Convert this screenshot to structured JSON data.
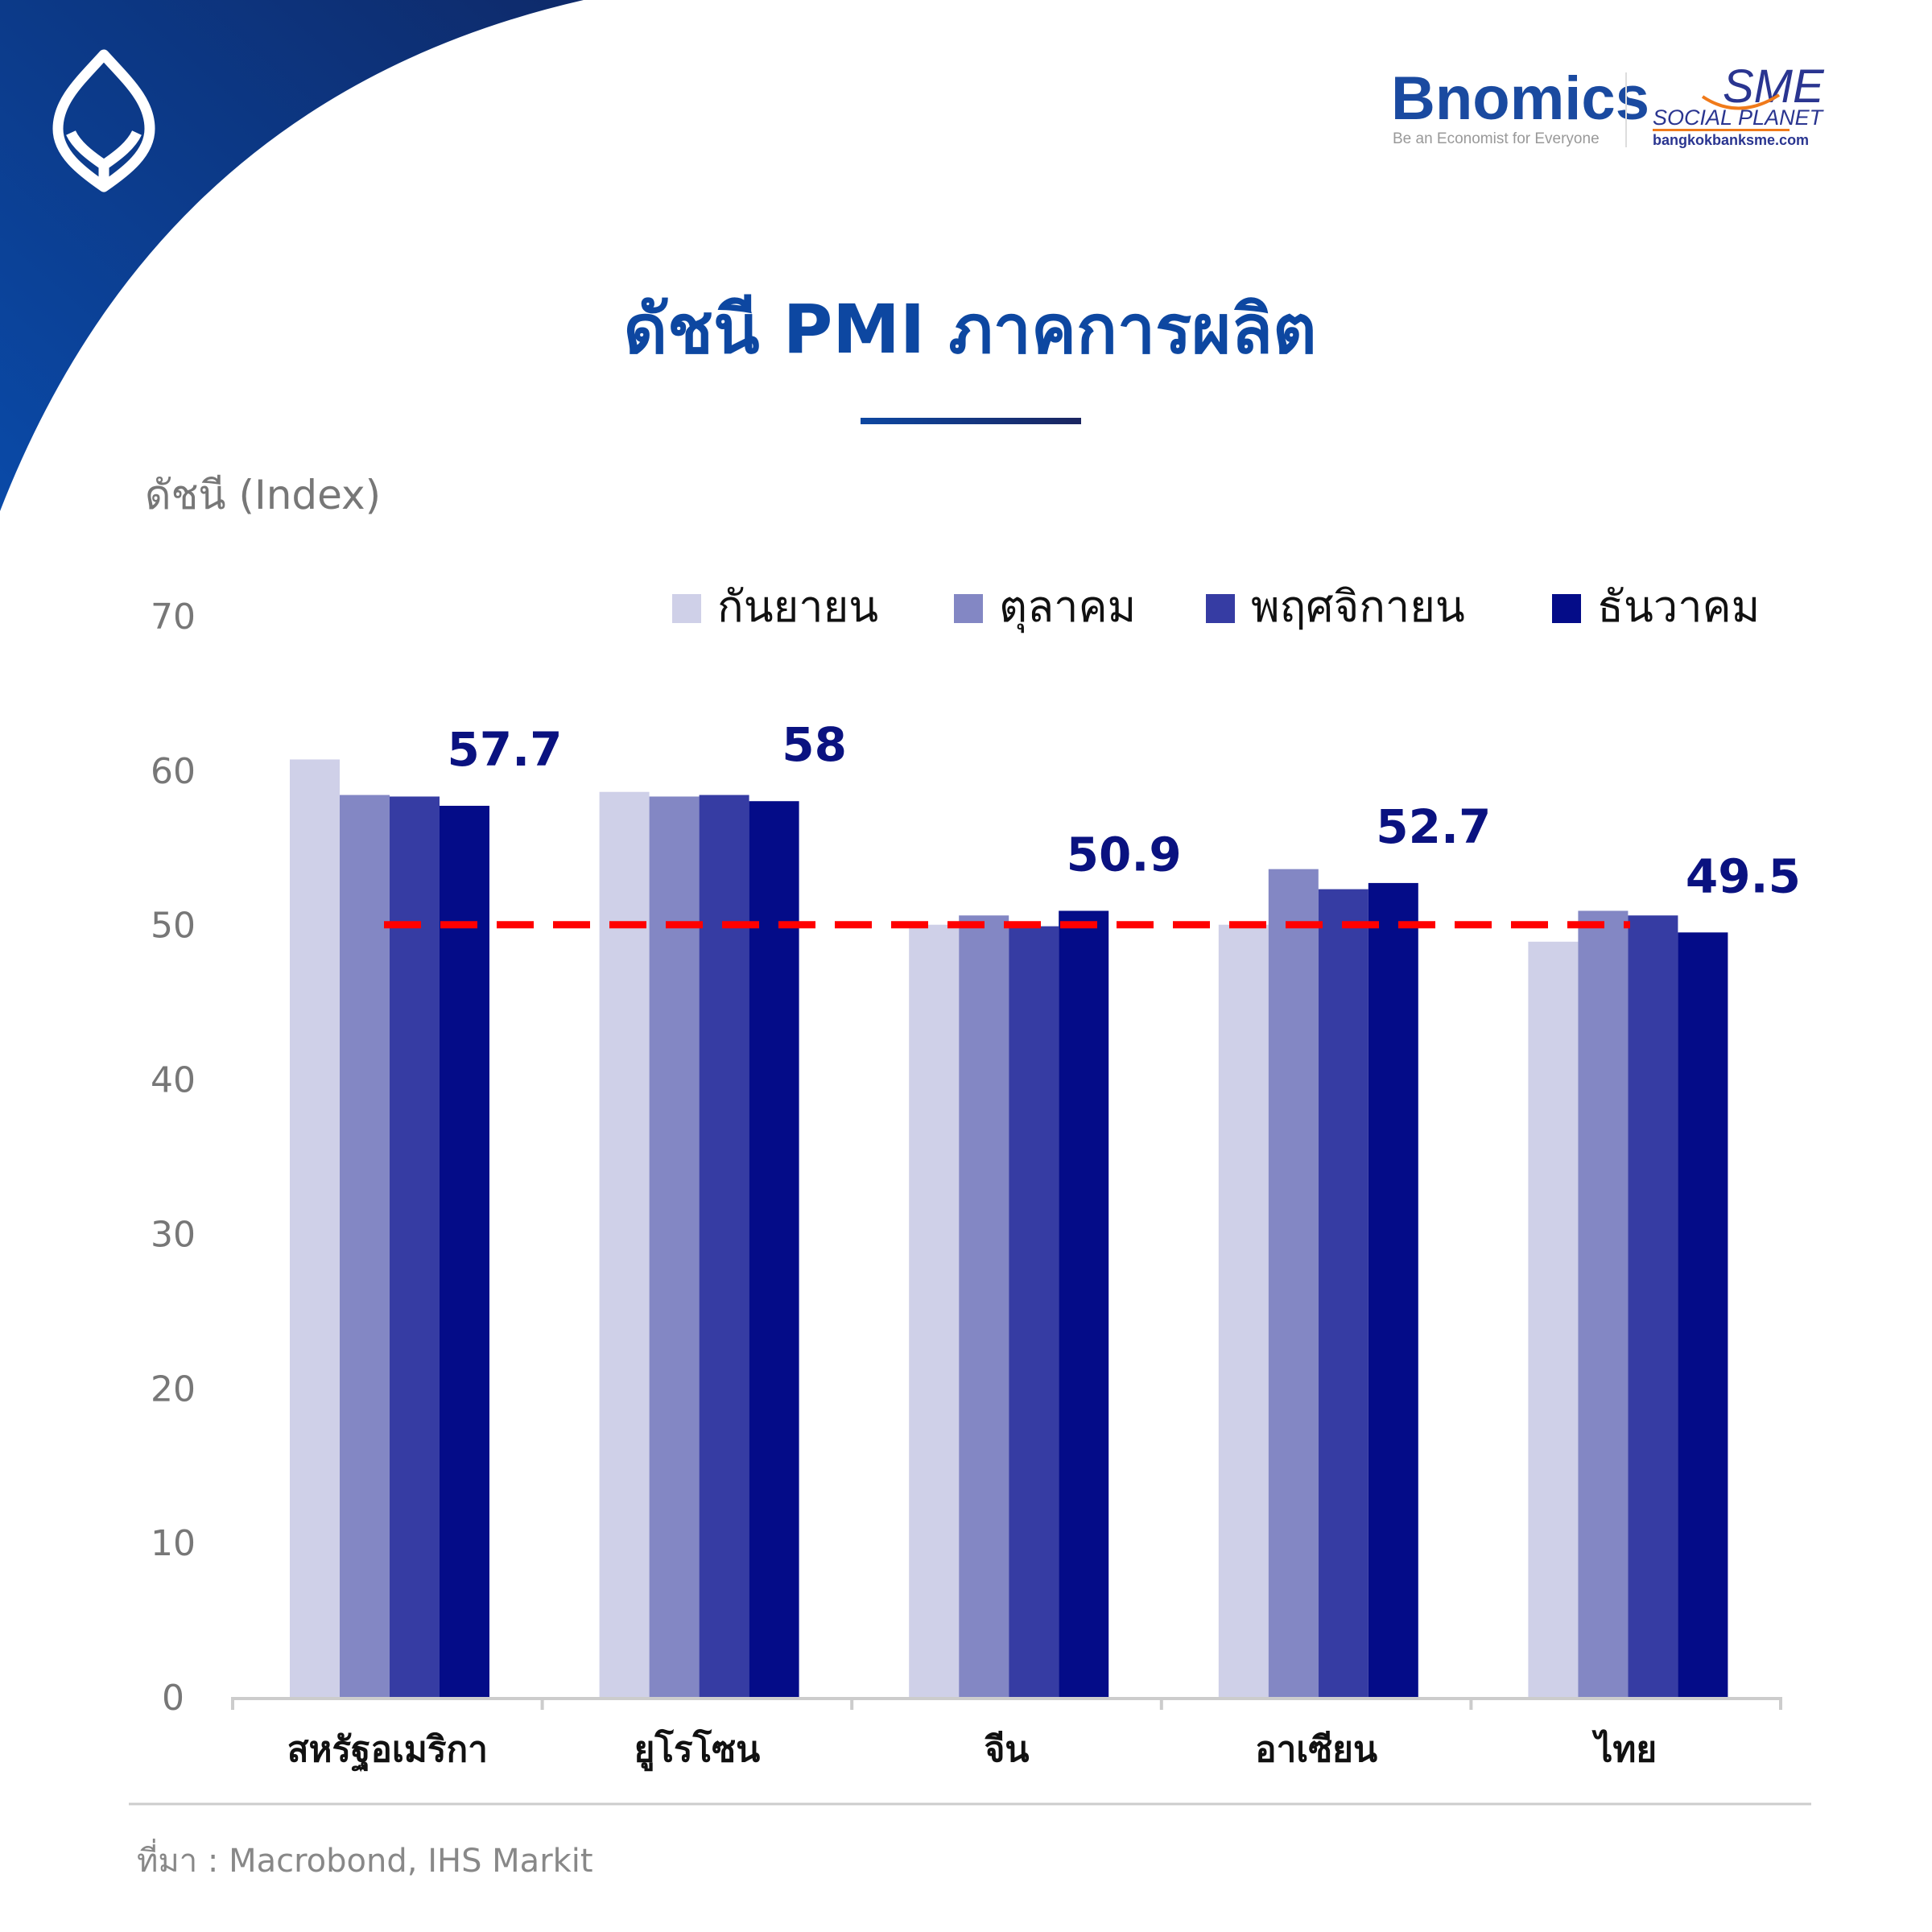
{
  "brand": {
    "bnomics_name": "Bnomics",
    "bnomics_tagline": "Be an Economist for Everyone",
    "sme_name": "SME",
    "sme_sub": "SOCIAL PLANET",
    "sme_url": "bangkokbanksme.com"
  },
  "source": "ที่มา : Macrobond, IHS Markit",
  "colors": {
    "sep": "#cfd0e8",
    "oct": "#8387c4",
    "nov": "#363ca3",
    "dec": "#040c88",
    "ref": "#ff0000",
    "title": "#0d47a1"
  },
  "chart_data": {
    "type": "bar",
    "title": "ดัชนี PMI ภาคการผลิต",
    "ylabel": "ดัชนี (Index)",
    "xlabel": "",
    "ylim": [
      0,
      70
    ],
    "yticks": [
      "0",
      "10",
      "20",
      "30",
      "40",
      "50",
      "60",
      "70"
    ],
    "categories": [
      "สหรัฐอเมริกา",
      "ยูโรโซน",
      "จีน",
      "อาเซียน",
      "ไทย"
    ],
    "series": [
      {
        "name": "กันยายน",
        "values": [
          60.7,
          58.6,
          50.0,
          50.0,
          48.9
        ]
      },
      {
        "name": "ตุลาคม",
        "values": [
          58.4,
          58.3,
          50.6,
          53.6,
          50.9
        ]
      },
      {
        "name": "พฤศจิกายน",
        "values": [
          58.3,
          58.4,
          49.9,
          52.3,
          50.6
        ]
      },
      {
        "name": "ธันวาคม",
        "values": [
          57.7,
          58.0,
          50.9,
          52.7,
          49.5
        ]
      }
    ],
    "data_labels": [
      "57.7",
      "58",
      "50.9",
      "52.7",
      "49.5"
    ],
    "reference_line": 50,
    "legend_position": "top-right",
    "grid": false
  }
}
